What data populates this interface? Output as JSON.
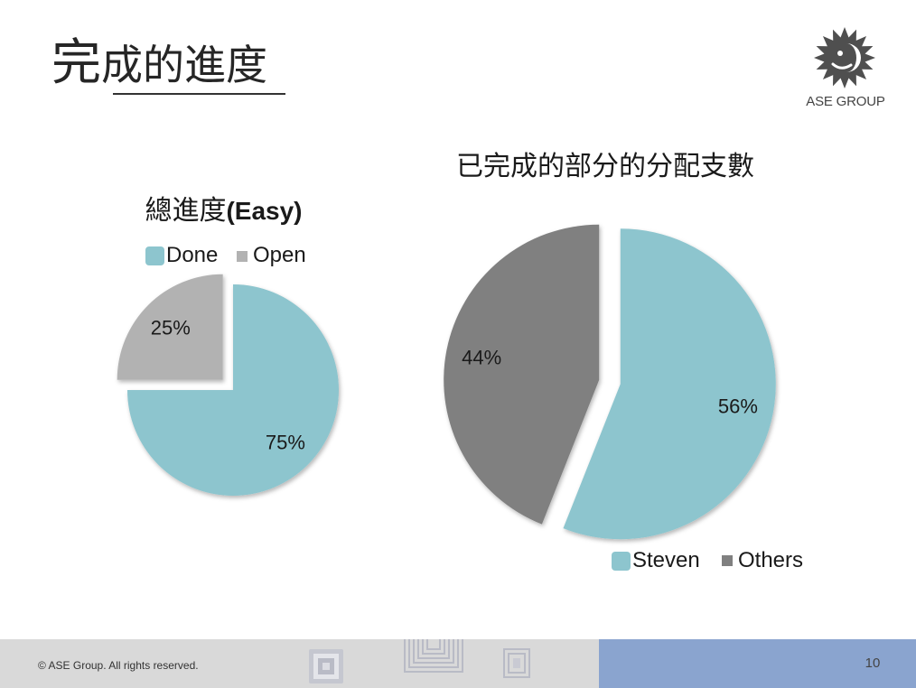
{
  "slide": {
    "title": "完成的進度"
  },
  "logo": {
    "icon": "ase-sun-logo-icon",
    "text": "ASE GROUP"
  },
  "footer": {
    "copyright": "© ASE Group. All rights reserved.",
    "page_number": "10",
    "decorations": [
      "chip-pattern-icon",
      "concentric-squares-icon",
      "circuit-pattern-icon"
    ],
    "band_colors": {
      "left": "#d9d9d9",
      "right": "#8aa4cf"
    }
  },
  "chart_data": [
    {
      "type": "pie",
      "title": "總進度(Easy)",
      "categories": [
        "Done",
        "Open"
      ],
      "values": [
        75,
        25
      ],
      "data_labels": [
        "75%",
        "25%"
      ],
      "colors": [
        "#8dc5ce",
        "#b2b2b2"
      ],
      "legend": "top"
    },
    {
      "type": "pie",
      "title": "已完成的部分的分配支數",
      "categories": [
        "Steven",
        "Others"
      ],
      "values": [
        56,
        44
      ],
      "data_labels": [
        "56%",
        "44%"
      ],
      "colors": [
        "#8dc5ce",
        "#808080"
      ],
      "legend": "bottom"
    }
  ]
}
